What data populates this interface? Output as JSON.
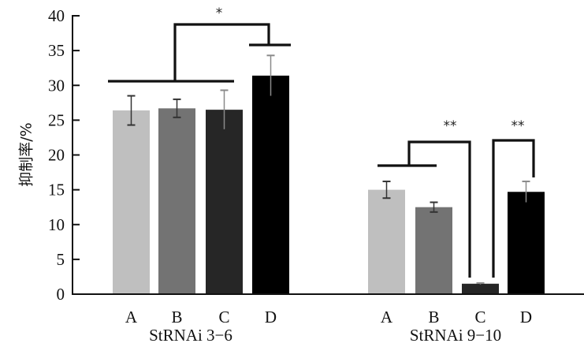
{
  "chart_data": {
    "type": "bar",
    "title": "",
    "xlabel": "",
    "ylabel": "抑制率/%",
    "ylim": [
      0,
      40
    ],
    "yticks": [
      0,
      5,
      10,
      15,
      20,
      25,
      30,
      35,
      40
    ],
    "grid": false,
    "legend": null,
    "categories": [
      "A",
      "B",
      "C",
      "D"
    ],
    "category_colors": [
      "#bfbfbf",
      "#737373",
      "#262626",
      "#000000"
    ],
    "groups": [
      {
        "name": "StRNAi 3-6",
        "label": "StRNAi 3−6",
        "values": [
          26.4,
          26.7,
          26.5,
          31.4
        ],
        "errors": [
          2.1,
          1.3,
          2.8,
          2.9
        ]
      },
      {
        "name": "StRNAi 9-10",
        "label": "StRNAi 9−10",
        "values": [
          15.0,
          12.5,
          1.5,
          14.7
        ],
        "errors": [
          1.2,
          0.7,
          0.1,
          1.5
        ]
      }
    ],
    "annotations": [
      {
        "group": 0,
        "compare": [
          [
            "A",
            "B",
            "C"
          ],
          [
            "D"
          ]
        ],
        "text": "*"
      },
      {
        "group": 1,
        "compare": [
          [
            "A",
            "B"
          ],
          [
            "C"
          ]
        ],
        "text": "**"
      },
      {
        "group": 1,
        "compare": [
          [
            "C"
          ],
          [
            "D"
          ]
        ],
        "text": "**"
      }
    ]
  }
}
